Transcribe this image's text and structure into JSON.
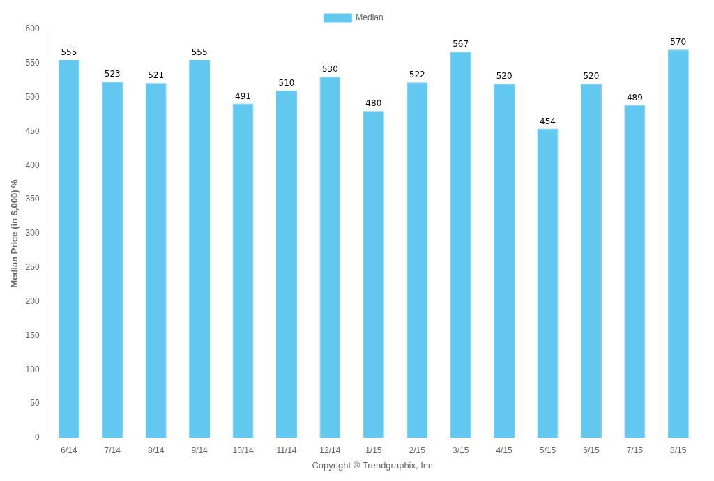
{
  "chart_data": {
    "type": "bar",
    "categories": [
      "6/14",
      "7/14",
      "8/14",
      "9/14",
      "10/14",
      "11/14",
      "12/14",
      "1/15",
      "2/15",
      "3/15",
      "4/15",
      "5/15",
      "6/15",
      "7/15",
      "8/15"
    ],
    "series": [
      {
        "name": "Median",
        "color": "#62C8F0",
        "values": [
          555,
          523,
          521,
          555,
          491,
          510,
          530,
          480,
          522,
          567,
          520,
          454,
          520,
          489,
          570
        ]
      }
    ],
    "xlabel": "Copyright ® Trendgraphix, Inc.",
    "ylabel": "Median Price (in $,000) %",
    "ylim": [
      0,
      600
    ],
    "yticks": [
      0,
      50,
      100,
      150,
      200,
      250,
      300,
      350,
      400,
      450,
      500,
      550,
      600
    ],
    "legend": "top",
    "grid": false,
    "data_labels": true
  }
}
